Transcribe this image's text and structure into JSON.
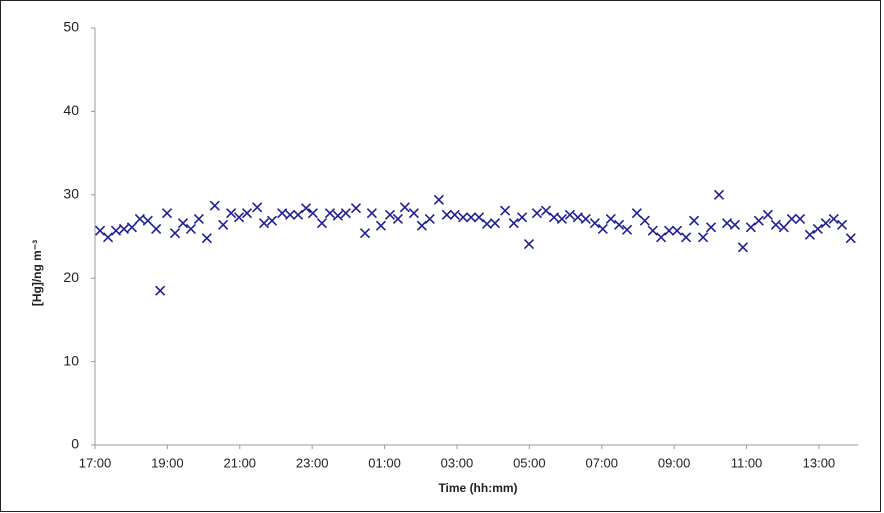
{
  "chart_data": {
    "type": "scatter",
    "x_label": "Time (hh:mm)",
    "y_label": "[Hg]/ng m⁻³",
    "color": "#1f1f96",
    "xlim": [
      17,
      38.08
    ],
    "ylim": [
      0,
      50
    ],
    "xticks": [
      {
        "value": 17,
        "label": "17:00"
      },
      {
        "value": 19,
        "label": "19:00"
      },
      {
        "value": 21,
        "label": "21:00"
      },
      {
        "value": 23,
        "label": "23:00"
      },
      {
        "value": 25,
        "label": "01:00"
      },
      {
        "value": 27,
        "label": "03:00"
      },
      {
        "value": 29,
        "label": "05:00"
      },
      {
        "value": 31,
        "label": "07:00"
      },
      {
        "value": 33,
        "label": "09:00"
      },
      {
        "value": 35,
        "label": "11:00"
      },
      {
        "value": 37,
        "label": "13:00"
      }
    ],
    "yticks": [
      0,
      10,
      20,
      30,
      40,
      50
    ],
    "x": [
      17.14,
      17.36,
      17.58,
      17.8,
      18.02,
      18.24,
      18.46,
      18.69,
      18.8,
      18.99,
      19.21,
      19.43,
      19.65,
      19.87,
      20.09,
      20.31,
      20.54,
      20.76,
      20.98,
      21.2,
      21.48,
      21.67,
      21.89,
      22.17,
      22.39,
      22.61,
      22.83,
      23.02,
      23.27,
      23.49,
      23.71,
      23.93,
      24.21,
      24.46,
      24.65,
      24.9,
      25.15,
      25.37,
      25.56,
      25.81,
      26.03,
      26.25,
      26.5,
      26.72,
      26.94,
      27.17,
      27.39,
      27.61,
      27.83,
      28.05,
      28.33,
      28.57,
      28.8,
      28.99,
      29.21,
      29.46,
      29.68,
      29.9,
      30.12,
      30.34,
      30.56,
      30.81,
      31.03,
      31.25,
      31.48,
      31.7,
      31.97,
      32.19,
      32.41,
      32.64,
      32.86,
      33.08,
      33.33,
      33.55,
      33.8,
      34.02,
      34.24,
      34.46,
      34.68,
      34.9,
      35.12,
      35.34,
      35.59,
      35.81,
      36.03,
      36.25,
      36.48,
      36.75,
      36.97,
      37.19,
      37.41,
      37.64,
      37.88
    ],
    "values": [
      25.7,
      24.9,
      25.7,
      25.9,
      26.1,
      27.1,
      26.9,
      25.9,
      18.5,
      27.8,
      25.4,
      26.6,
      25.9,
      27.1,
      24.8,
      28.7,
      26.4,
      27.8,
      27.3,
      27.8,
      28.5,
      26.6,
      26.9,
      27.8,
      27.6,
      27.6,
      28.4,
      27.8,
      26.6,
      27.8,
      27.5,
      27.8,
      28.4,
      25.4,
      27.8,
      26.3,
      27.6,
      27.1,
      28.5,
      27.8,
      26.3,
      27.1,
      29.4,
      27.6,
      27.6,
      27.3,
      27.3,
      27.3,
      26.5,
      26.6,
      28.1,
      26.6,
      27.3,
      24.1,
      27.8,
      28.1,
      27.3,
      27.1,
      27.6,
      27.3,
      27.1,
      26.6,
      25.9,
      27.1,
      26.4,
      25.8,
      27.8,
      26.9,
      25.7,
      24.9,
      25.7,
      25.7,
      24.9,
      26.9,
      24.9,
      26.1,
      30.0,
      26.6,
      26.4,
      23.7,
      26.1,
      26.9,
      27.6,
      26.4,
      26.1,
      27.1,
      27.1,
      25.2,
      25.9,
      26.6,
      27.1,
      26.4,
      24.8
    ]
  }
}
